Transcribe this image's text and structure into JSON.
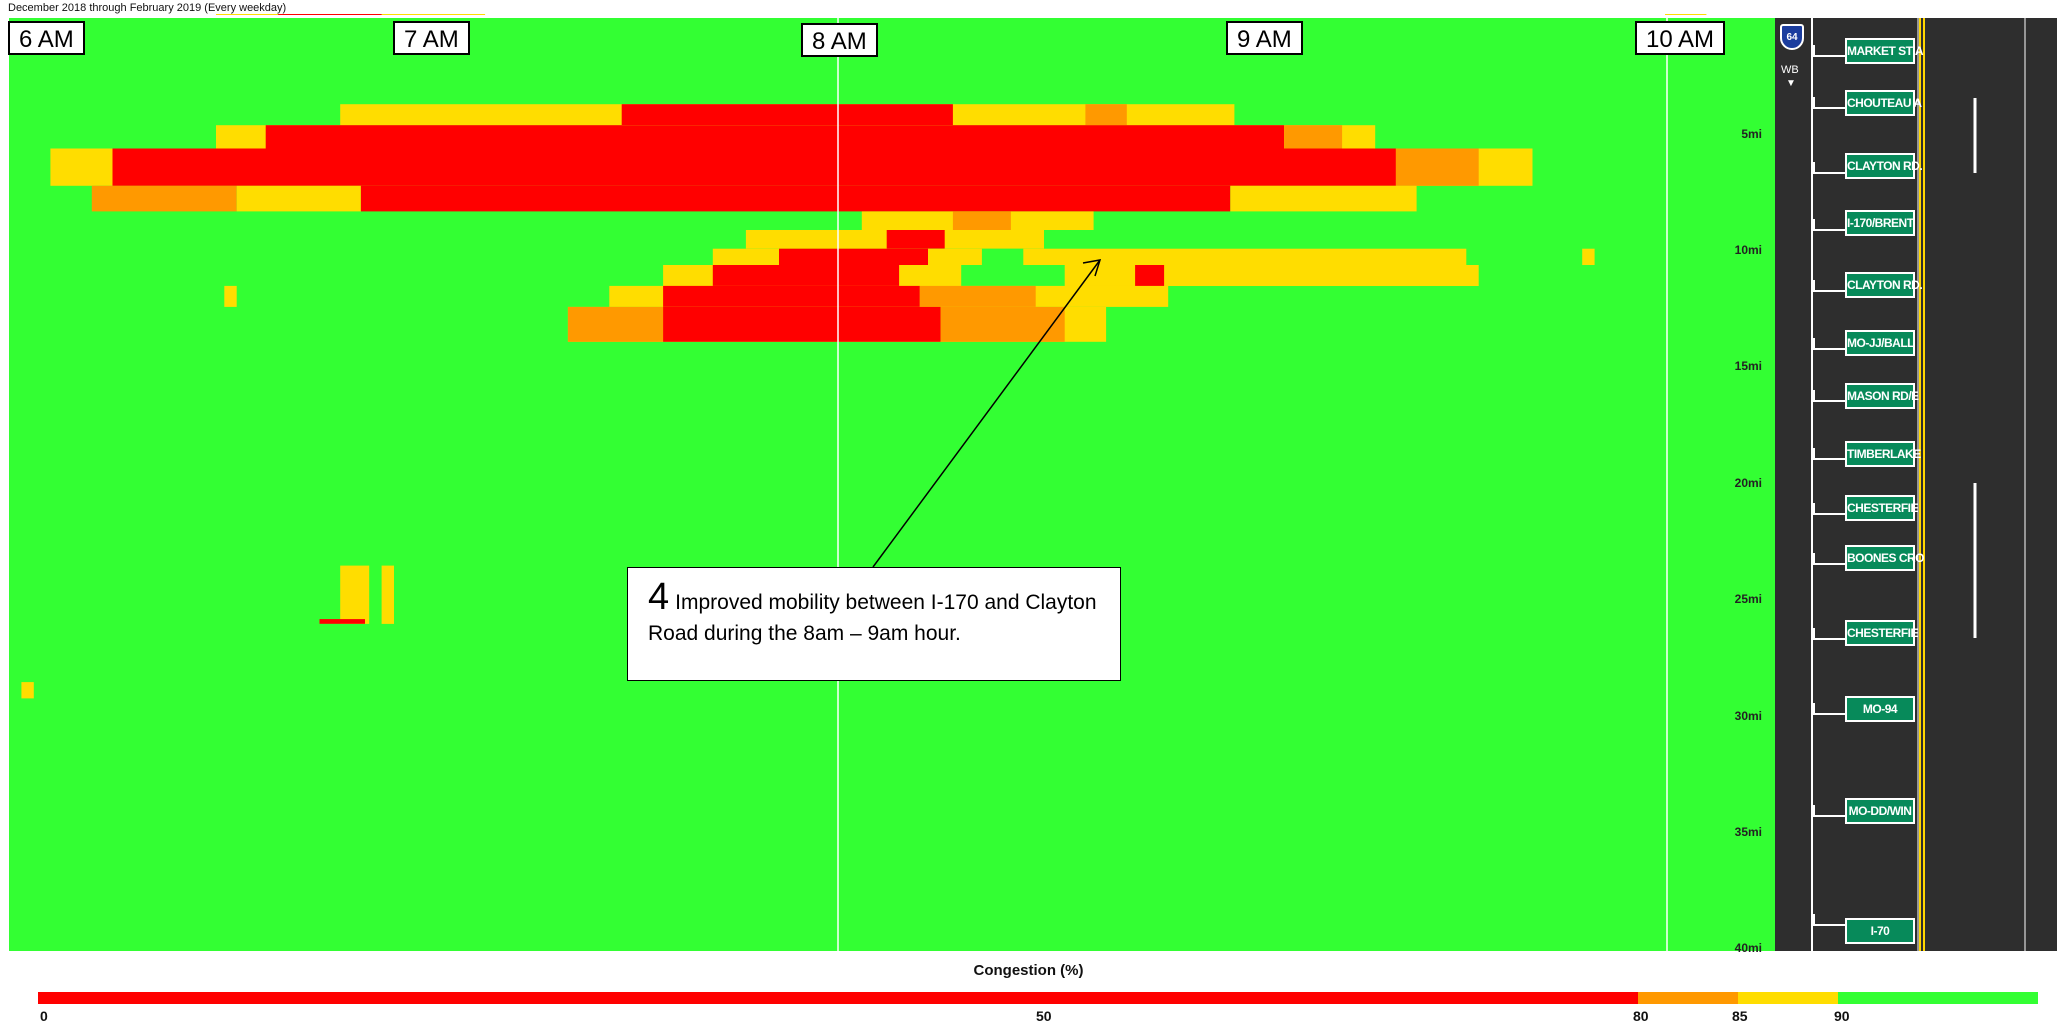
{
  "subtitle": "December 2018 through February 2019 (Every weekday)",
  "time_labels": [
    "6 AM",
    "7 AM",
    "8 AM",
    "9 AM",
    "10 AM"
  ],
  "mile_labels": [
    "5mi",
    "10mi",
    "15mi",
    "20mi",
    "25mi",
    "30mi",
    "35mi",
    "40mi"
  ],
  "route": {
    "shield": "64",
    "direction": "WB",
    "icon": "interstate-shield-icon"
  },
  "exits": [
    "MARKET ST A",
    "CHOUTEAU A",
    "CLAYTON RD.",
    "I-170/BRENT",
    "CLAYTON RD.",
    "MO-JJ/BALL",
    "MASON RD/E",
    "TIMBERLAKE",
    "CHESTERFIE",
    "BOONES CRO",
    "CHESTERFIE",
    "MO-94",
    "MO-DD/WIN",
    "I-70"
  ],
  "callout": {
    "number": "4",
    "text": "Improved mobility between I-170 and Clayton Road during the 8am – 9am hour."
  },
  "legend": {
    "title": "Congestion (%)",
    "ticks": [
      "0",
      "50",
      "80",
      "85",
      "90"
    ]
  },
  "colors": {
    "free_flow": "#33ff33",
    "slight": "#ffdd00",
    "moderate": "#ff9900",
    "heavy": "#ff0000"
  },
  "chart_data": {
    "type": "heatmap",
    "title": "",
    "subtitle": "December 2018 through February 2019 (Every weekday)",
    "xlabel": "",
    "ylabel": "",
    "x_range": [
      "6 AM",
      "10:15 AM"
    ],
    "y_range_mi": [
      0,
      40
    ],
    "color_scale": {
      "label": "Congestion (%)",
      "stops": [
        {
          "from": 0,
          "to": 80,
          "color": "#ff0000"
        },
        {
          "from": 80,
          "to": 85,
          "color": "#ff9900"
        },
        {
          "from": 85,
          "to": 90,
          "color": "#ffdd00"
        },
        {
          "from": 90,
          "to": 100,
          "color": "#33ff33"
        }
      ]
    },
    "background_level": "free_flow",
    "regions": [
      {
        "level": "slight",
        "t0": 6.8,
        "t1": 8.96,
        "m0": 3.7,
        "m1": 4.6
      },
      {
        "level": "heavy",
        "t0": 7.48,
        "t1": 8.28,
        "m0": 3.7,
        "m1": 4.6
      },
      {
        "level": "moderate",
        "t0": 8.6,
        "t1": 8.7,
        "m0": 3.7,
        "m1": 4.6
      },
      {
        "level": "slight",
        "t0": 6.5,
        "t1": 9.3,
        "m0": 4.6,
        "m1": 5.6
      },
      {
        "level": "heavy",
        "t0": 6.62,
        "t1": 9.08,
        "m0": 4.6,
        "m1": 5.6
      },
      {
        "level": "moderate",
        "t0": 9.08,
        "t1": 9.22,
        "m0": 4.6,
        "m1": 5.6
      },
      {
        "level": "slight",
        "t0": 6.1,
        "t1": 9.68,
        "m0": 5.6,
        "m1": 7.2
      },
      {
        "level": "heavy",
        "t0": 6.25,
        "t1": 9.35,
        "m0": 5.6,
        "m1": 7.2
      },
      {
        "level": "moderate",
        "t0": 9.35,
        "t1": 9.55,
        "m0": 5.6,
        "m1": 7.2
      },
      {
        "level": "moderate",
        "t0": 6.2,
        "t1": 6.55,
        "m0": 7.2,
        "m1": 8.3
      },
      {
        "level": "slight",
        "t0": 6.55,
        "t1": 6.85,
        "m0": 7.2,
        "m1": 8.3
      },
      {
        "level": "heavy",
        "t0": 6.85,
        "t1": 8.95,
        "m0": 7.2,
        "m1": 8.3
      },
      {
        "level": "slight",
        "t0": 8.95,
        "t1": 9.4,
        "m0": 7.2,
        "m1": 8.3
      },
      {
        "level": "slight",
        "t0": 8.06,
        "t1": 8.62,
        "m0": 8.3,
        "m1": 9.1
      },
      {
        "level": "moderate",
        "t0": 8.28,
        "t1": 8.42,
        "m0": 8.3,
        "m1": 9.1
      },
      {
        "level": "slight",
        "t0": 7.78,
        "t1": 8.5,
        "m0": 9.1,
        "m1": 9.9
      },
      {
        "level": "heavy",
        "t0": 8.12,
        "t1": 8.26,
        "m0": 9.1,
        "m1": 9.9
      },
      {
        "level": "slight",
        "t0": 7.7,
        "t1": 8.35,
        "m0": 9.9,
        "m1": 10.6
      },
      {
        "level": "heavy",
        "t0": 7.86,
        "t1": 8.22,
        "m0": 9.9,
        "m1": 10.6
      },
      {
        "level": "slight",
        "t0": 8.45,
        "t1": 9.52,
        "m0": 9.9,
        "m1": 10.6
      },
      {
        "level": "slight",
        "t0": 7.58,
        "t1": 8.3,
        "m0": 10.6,
        "m1": 11.5
      },
      {
        "level": "heavy",
        "t0": 7.7,
        "t1": 8.15,
        "m0": 10.6,
        "m1": 11.5
      },
      {
        "level": "slight",
        "t0": 8.55,
        "t1": 9.55,
        "m0": 10.6,
        "m1": 11.5
      },
      {
        "level": "heavy",
        "t0": 8.72,
        "t1": 8.79,
        "m0": 10.6,
        "m1": 11.5
      },
      {
        "level": "slight",
        "t0": 7.45,
        "t1": 8.8,
        "m0": 11.5,
        "m1": 12.4
      },
      {
        "level": "heavy",
        "t0": 7.58,
        "t1": 8.2,
        "m0": 11.5,
        "m1": 12.4
      },
      {
        "level": "moderate",
        "t0": 8.2,
        "t1": 8.48,
        "m0": 11.5,
        "m1": 12.4
      },
      {
        "level": "slight",
        "t0": 7.35,
        "t1": 8.65,
        "m0": 12.4,
        "m1": 13.9
      },
      {
        "level": "moderate",
        "t0": 7.35,
        "t1": 7.58,
        "m0": 12.4,
        "m1": 13.9
      },
      {
        "level": "heavy",
        "t0": 7.58,
        "t1": 8.25,
        "m0": 12.4,
        "m1": 13.9
      },
      {
        "level": "moderate",
        "t0": 8.25,
        "t1": 8.55,
        "m0": 12.4,
        "m1": 13.9
      },
      {
        "level": "slight",
        "t0": 6.8,
        "t1": 6.87,
        "m0": 23.5,
        "m1": 26.0
      },
      {
        "level": "slight",
        "t0": 6.9,
        "t1": 6.93,
        "m0": 23.5,
        "m1": 26.0
      },
      {
        "level": "heavy",
        "t0": 6.75,
        "t1": 6.86,
        "m0": 25.8,
        "m1": 26.0
      },
      {
        "level": "slight",
        "t0": 6.03,
        "t1": 6.06,
        "m0": 28.5,
        "m1": 29.2
      },
      {
        "level": "slight",
        "t0": 6.52,
        "t1": 6.55,
        "m0": 11.5,
        "m1": 12.4
      },
      {
        "level": "slight",
        "t0": 9.8,
        "t1": 9.83,
        "m0": 9.9,
        "m1": 10.6
      },
      {
        "level": "slight",
        "t0": 6.5,
        "t1": 7.15,
        "m0": -0.9,
        "m1": -0.6
      },
      {
        "level": "heavy",
        "t0": 6.65,
        "t1": 6.9,
        "m0": -0.9,
        "m1": -0.6
      },
      {
        "level": "slight",
        "t0": 10.0,
        "t1": 10.1,
        "m0": -0.9,
        "m1": -0.6
      }
    ]
  }
}
